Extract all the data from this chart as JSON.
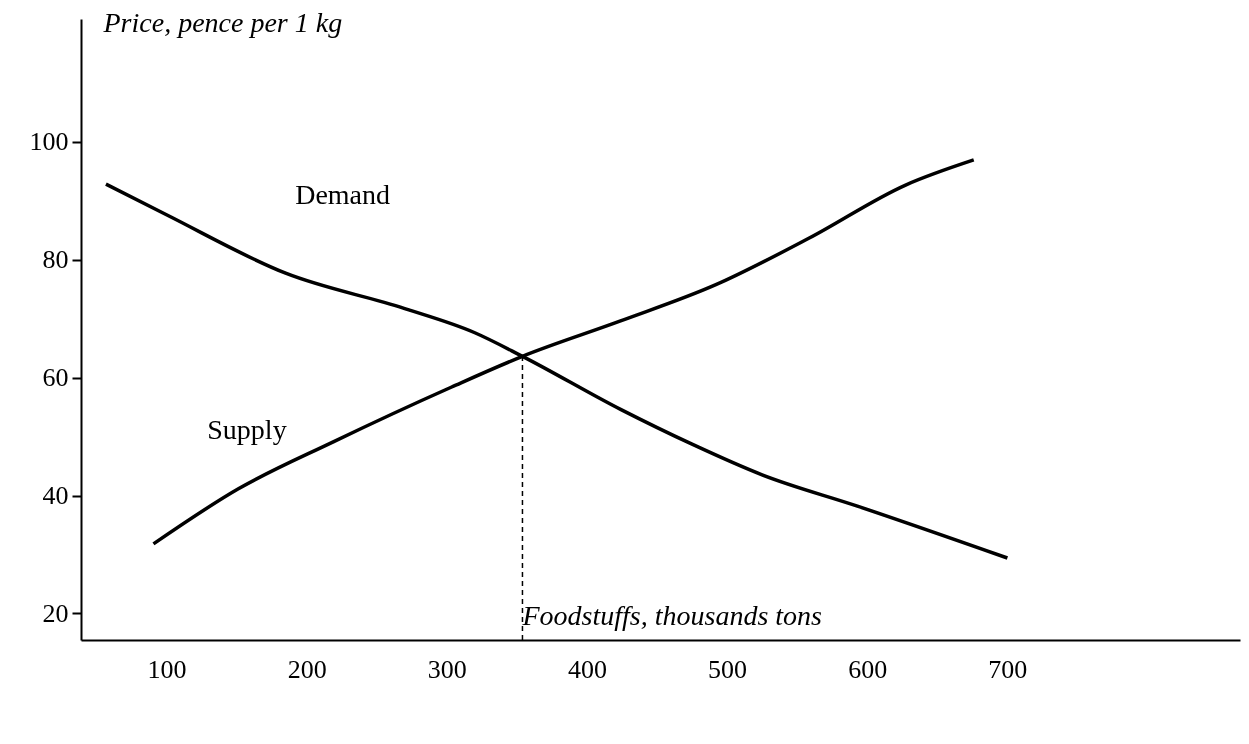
{
  "chart_data": {
    "type": "line",
    "xlabel": "Foodstuffs, thousands tons",
    "ylabel": "Price, pence per 1 kg",
    "xlim": [
      39,
      866
    ],
    "ylim": [
      15.5,
      120.8
    ],
    "xticks": [
      100,
      200,
      300,
      400,
      500,
      600,
      700
    ],
    "yticks": [
      20,
      40,
      60,
      80,
      100
    ],
    "grid": false,
    "marker": "none",
    "line_style": "solid",
    "series": [
      {
        "name": "Demand",
        "color": "#000000",
        "x": [
          56.8,
          100,
          185,
          270,
          320,
          354,
          424,
          475,
          525,
          593,
          700
        ],
        "values": [
          92.8,
          87.6,
          77.7,
          71.7,
          67.6,
          63.6,
          54.6,
          48.7,
          43.5,
          38.2,
          29.4
        ]
      },
      {
        "name": "Supply",
        "color": "#000000",
        "x": [
          90.7,
          151,
          219,
          303.5,
          354,
          424,
          491.6,
          559,
          627,
          676
        ],
        "values": [
          31.8,
          41.1,
          49.1,
          58.4,
          63.6,
          69.6,
          75.7,
          83.7,
          92.6,
          96.9
        ]
      }
    ],
    "ref_lines": [
      {
        "axis": "x",
        "value": 354,
        "color": "#000000",
        "line_style": "dashed"
      }
    ]
  }
}
